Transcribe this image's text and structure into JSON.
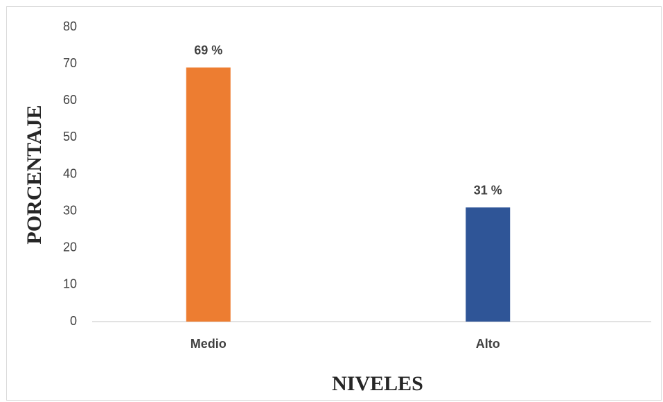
{
  "chart_data": {
    "type": "bar",
    "title": "",
    "xlabel": "NIVELES",
    "ylabel": "PORCENTAJE",
    "ylim": [
      0,
      80
    ],
    "yticks": [
      0,
      10,
      20,
      30,
      40,
      50,
      60,
      70,
      80
    ],
    "categories": [
      "Medio",
      "Alto"
    ],
    "values": [
      69,
      31
    ],
    "data_labels": [
      "69 %",
      "31 %"
    ],
    "colors": [
      "#ED7D31",
      "#2F5597"
    ],
    "grid": false,
    "legend": "none"
  }
}
